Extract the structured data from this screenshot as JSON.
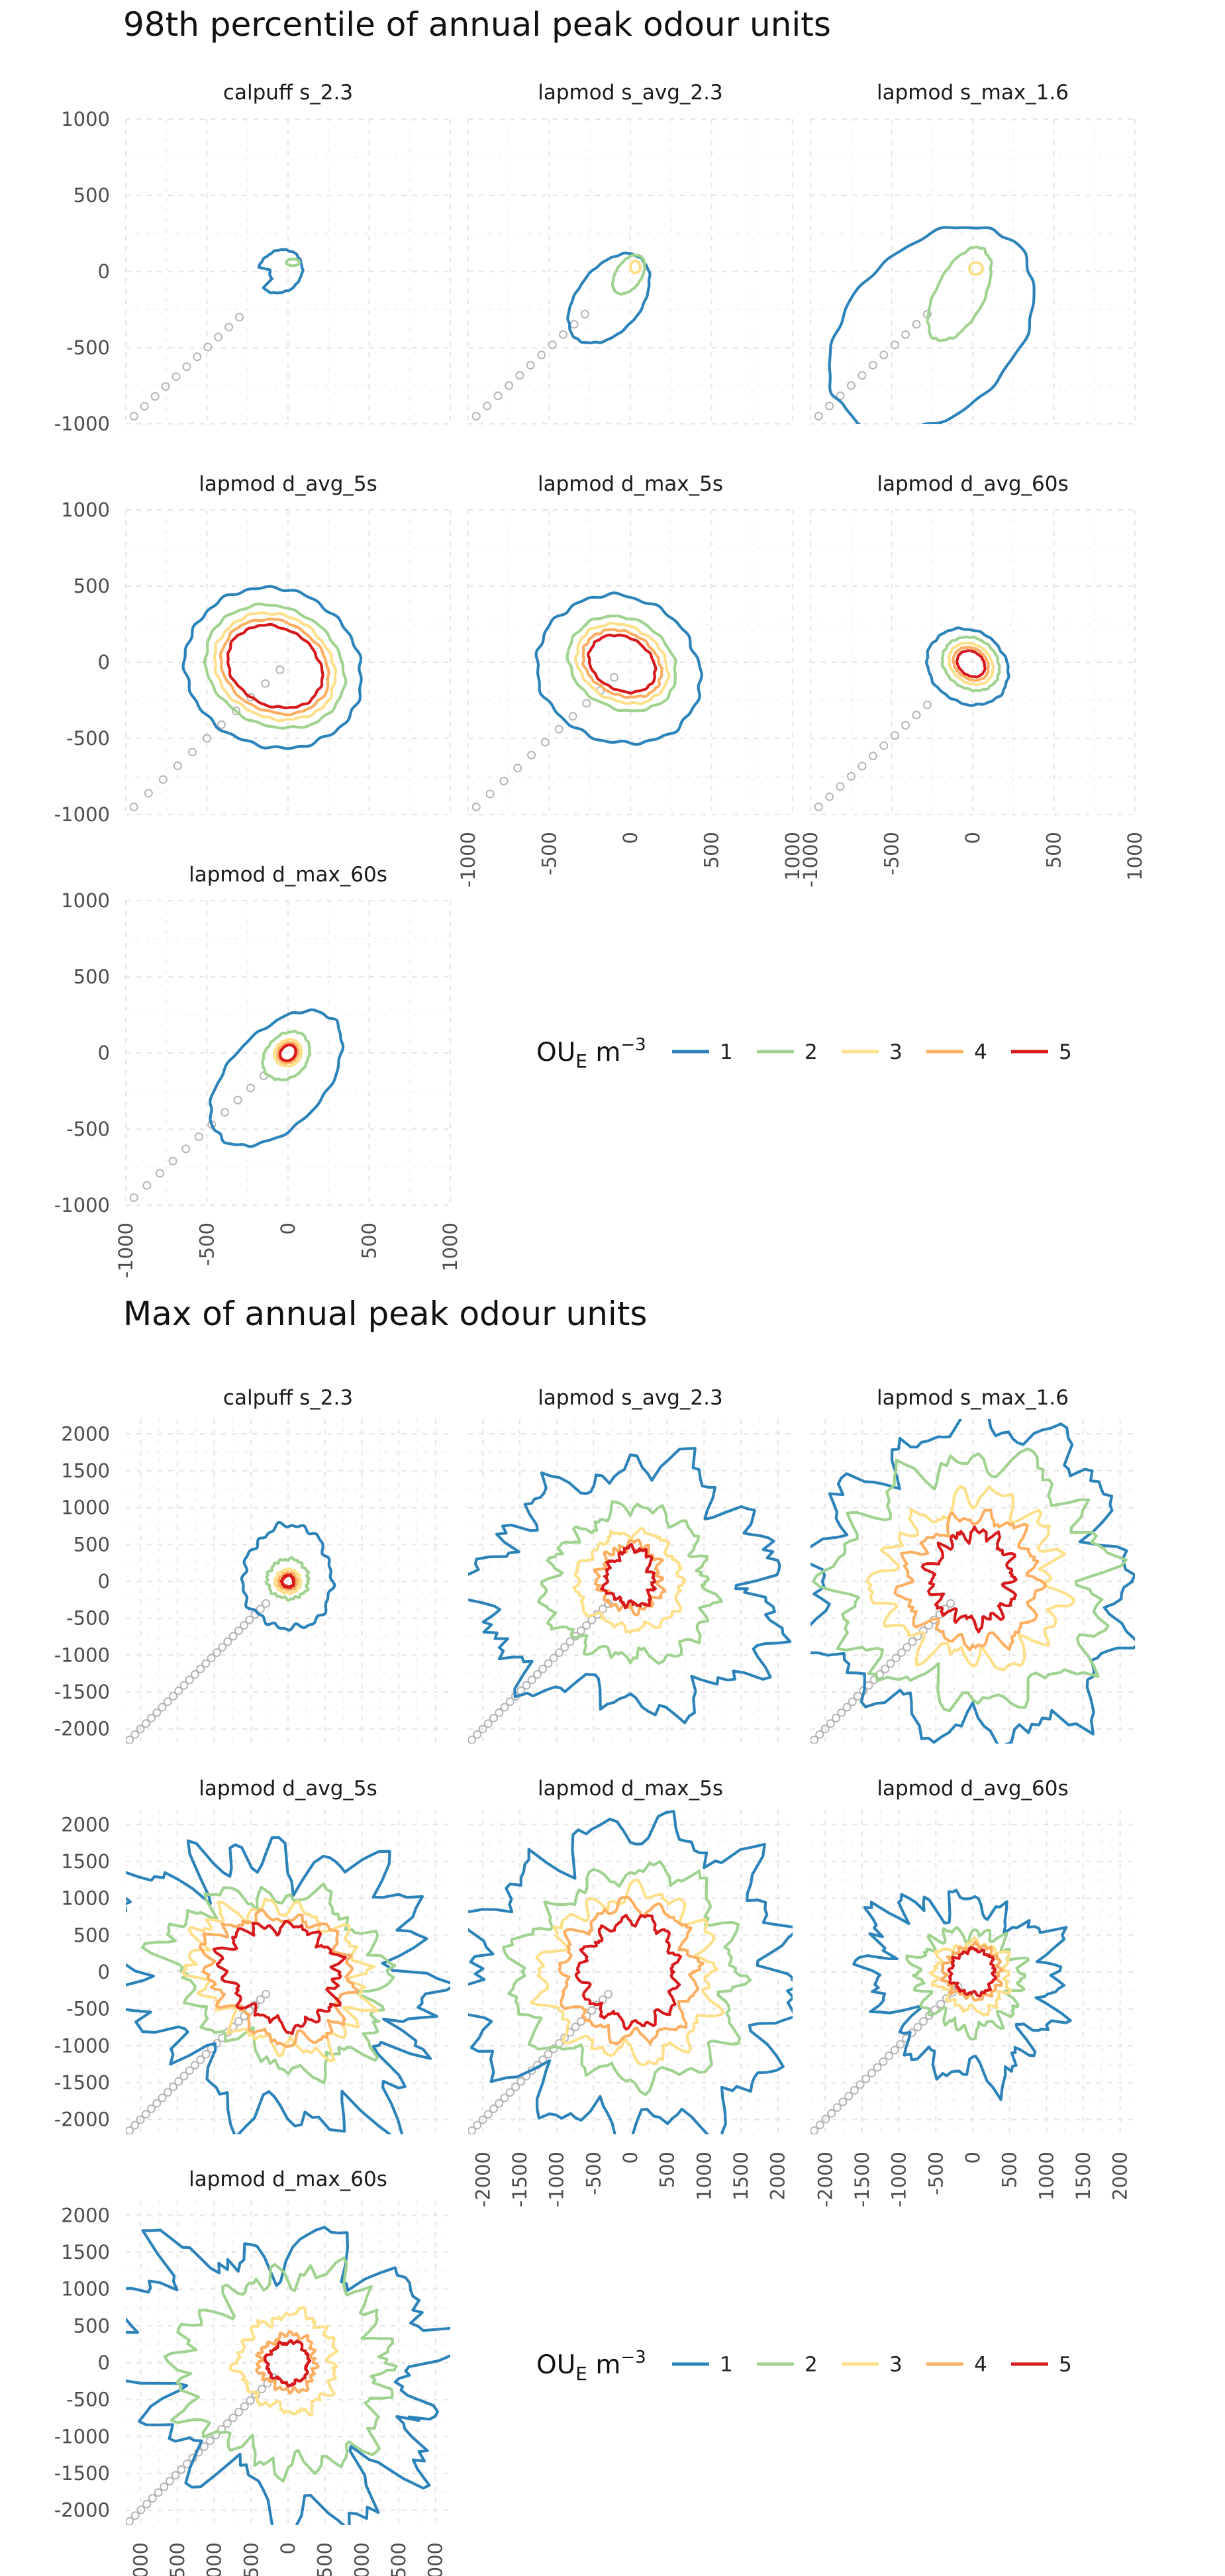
{
  "figures": [
    {
      "title": "98th percentile of annual peak odour units",
      "legend_title": "OU",
      "legend_sub": "E",
      "legend_unit": " m",
      "legend_sup": "−3",
      "legend_items": [
        "1",
        "2",
        "3",
        "4",
        "5"
      ],
      "chart_data": {
        "type": "contour",
        "xlim": [
          -1000,
          1000
        ],
        "ylim": [
          -1000,
          1000
        ],
        "x_ticks": [
          -1000,
          -500,
          0,
          500,
          1000
        ],
        "y_ticks": [
          -1000,
          -500,
          0,
          500,
          1000
        ],
        "panels": [
          {
            "name": "calpuff s_2.3",
            "levels": [
              {
                "level": 1,
                "x0": -50,
                "y0": 0,
                "rx": 130,
                "ry": 150,
                "rot": -40,
                "shape": "comma"
              },
              {
                "level": 2,
                "x0": 30,
                "y0": 60,
                "rx": 40,
                "ry": 22,
                "rot": 0
              }
            ],
            "track": [
              -950,
              -950,
              -300,
              -300
            ]
          },
          {
            "name": "lapmod s_avg_2.3",
            "levels": [
              {
                "level": 1,
                "x0": -130,
                "y0": -180,
                "rx": 200,
                "ry": 330,
                "rot": -35
              },
              {
                "level": 2,
                "x0": -10,
                "y0": -20,
                "rx": 80,
                "ry": 140,
                "rot": -30
              },
              {
                "level": 3,
                "x0": 30,
                "y0": 30,
                "rx": 30,
                "ry": 40,
                "rot": 0
              }
            ],
            "track": [
              -950,
              -950,
              -280,
              -280
            ]
          },
          {
            "name": "lapmod s_max_1.6",
            "levels": [
              {
                "level": 1,
                "x0": -250,
                "y0": -380,
                "rx": 520,
                "ry": 760,
                "rot": -40
              },
              {
                "level": 2,
                "x0": -80,
                "y0": -150,
                "rx": 150,
                "ry": 330,
                "rot": -25
              },
              {
                "level": 3,
                "x0": 20,
                "y0": 20,
                "rx": 40,
                "ry": 40,
                "rot": 0
              }
            ],
            "track": [
              -950,
              -950,
              -280,
              -280
            ]
          },
          {
            "name": "lapmod d_avg_5s",
            "levels": [
              {
                "level": 1,
                "x0": -90,
                "y0": -40,
                "rx": 560,
                "ry": 510,
                "rot": -35
              },
              {
                "level": 2,
                "x0": -80,
                "y0": -30,
                "rx": 450,
                "ry": 380,
                "rot": -35
              },
              {
                "level": 3,
                "x0": -80,
                "y0": -30,
                "rx": 390,
                "ry": 330,
                "rot": -35
              },
              {
                "level": 4,
                "x0": -80,
                "y0": -30,
                "rx": 350,
                "ry": 290,
                "rot": -35
              },
              {
                "level": 5,
                "x0": -80,
                "y0": -30,
                "rx": 310,
                "ry": 250,
                "rot": -35
              }
            ],
            "track": [
              -950,
              -950,
              -50,
              -50
            ]
          },
          {
            "name": "lapmod d_max_5s",
            "levels": [
              {
                "level": 1,
                "x0": -70,
                "y0": -50,
                "rx": 520,
                "ry": 470,
                "rot": -35
              },
              {
                "level": 2,
                "x0": -50,
                "y0": -10,
                "rx": 350,
                "ry": 290,
                "rot": -35
              },
              {
                "level": 3,
                "x0": -50,
                "y0": -10,
                "rx": 300,
                "ry": 240,
                "rot": -35
              },
              {
                "level": 4,
                "x0": -50,
                "y0": -10,
                "rx": 260,
                "ry": 200,
                "rot": -35
              },
              {
                "level": 5,
                "x0": -50,
                "y0": -10,
                "rx": 220,
                "ry": 170,
                "rot": -35
              }
            ],
            "track": [
              -950,
              -950,
              -100,
              -100
            ]
          },
          {
            "name": "lapmod d_avg_60s",
            "levels": [
              {
                "level": 1,
                "x0": -30,
                "y0": -30,
                "rx": 270,
                "ry": 230,
                "rot": -45
              },
              {
                "level": 2,
                "x0": -10,
                "y0": -10,
                "rx": 190,
                "ry": 160,
                "rot": -45
              },
              {
                "level": 3,
                "x0": -10,
                "y0": -10,
                "rx": 150,
                "ry": 120,
                "rot": -45
              },
              {
                "level": 4,
                "x0": -10,
                "y0": -10,
                "rx": 120,
                "ry": 95,
                "rot": -45
              },
              {
                "level": 5,
                "x0": -10,
                "y0": -10,
                "rx": 95,
                "ry": 75,
                "rot": -45
              }
            ],
            "track": [
              -950,
              -950,
              -280,
              -280
            ]
          },
          {
            "name": "lapmod d_max_60s",
            "levels": [
              {
                "level": 1,
                "x0": -70,
                "y0": -170,
                "rx": 300,
                "ry": 520,
                "rot": -40
              },
              {
                "level": 2,
                "x0": -10,
                "y0": -20,
                "rx": 130,
                "ry": 170,
                "rot": -35
              },
              {
                "level": 3,
                "x0": 0,
                "y0": 0,
                "rx": 80,
                "ry": 90,
                "rot": -35
              },
              {
                "level": 4,
                "x0": 0,
                "y0": 0,
                "rx": 60,
                "ry": 70,
                "rot": -35
              },
              {
                "level": 5,
                "x0": 0,
                "y0": 0,
                "rx": 45,
                "ry": 55,
                "rot": -35
              }
            ],
            "track": [
              -950,
              -950,
              -150,
              -150
            ]
          }
        ]
      }
    },
    {
      "title": "Max of annual peak odour units",
      "legend_title": "OU",
      "legend_sub": "E",
      "legend_unit": " m",
      "legend_sup": "−3",
      "legend_items": [
        "1",
        "2",
        "3",
        "4",
        "5"
      ],
      "chart_data": {
        "type": "contour",
        "xlim": [
          -2200,
          2200
        ],
        "ylim": [
          -2200,
          2200
        ],
        "x_ticks": [
          -2000,
          -1500,
          -1000,
          -500,
          0,
          500,
          1000,
          1500,
          2000
        ],
        "y_ticks": [
          -2000,
          -1500,
          -1000,
          -500,
          0,
          500,
          1000,
          1500,
          2000
        ],
        "panels": [
          {
            "name": "calpuff s_2.3",
            "levels": [
              {
                "level": 1,
                "x0": 0,
                "y0": 50,
                "rx": 600,
                "ry": 700,
                "rot": 0,
                "rough": 0.15
              },
              {
                "level": 2,
                "x0": 0,
                "y0": 30,
                "rx": 280,
                "ry": 270,
                "rot": 0,
                "rough": 0.15
              },
              {
                "level": 3,
                "x0": 0,
                "y0": 0,
                "rx": 170,
                "ry": 160,
                "rot": 0,
                "rough": 0.2
              },
              {
                "level": 4,
                "x0": 0,
                "y0": 0,
                "rx": 120,
                "ry": 110,
                "rot": 0,
                "rough": 0.25
              },
              {
                "level": 5,
                "x0": 0,
                "y0": 0,
                "rx": 80,
                "ry": 80,
                "rot": 0,
                "rough": 0.3
              }
            ],
            "track": [
              -2150,
              -2150,
              -300,
              -300
            ]
          },
          {
            "name": "lapmod s_avg_2.3",
            "levels": [
              {
                "level": 1,
                "x0": 0,
                "y0": -100,
                "rx": 2000,
                "ry": 1600,
                "rot": 0,
                "rough": 0.45
              },
              {
                "level": 2,
                "x0": 0,
                "y0": -50,
                "rx": 1100,
                "ry": 1000,
                "rot": 0,
                "rough": 0.3
              },
              {
                "level": 3,
                "x0": 0,
                "y0": 0,
                "rx": 700,
                "ry": 650,
                "rot": 0,
                "rough": 0.3
              },
              {
                "level": 4,
                "x0": 0,
                "y0": 50,
                "rx": 420,
                "ry": 450,
                "rot": 0,
                "rough": 0.4
              },
              {
                "level": 5,
                "x0": 0,
                "y0": 50,
                "rx": 320,
                "ry": 380,
                "rot": 0,
                "rough": 0.45
              }
            ],
            "track": [
              -2150,
              -2150,
              -300,
              -300
            ]
          },
          {
            "name": "lapmod s_max_1.6",
            "levels": [
              {
                "level": 1,
                "x0": 0,
                "y0": 0,
                "rx": 2100,
                "ry": 2100,
                "rot": 0,
                "rough": 0.35
              },
              {
                "level": 2,
                "x0": 0,
                "y0": 0,
                "rx": 1800,
                "ry": 1600,
                "rot": 0,
                "rough": 0.35
              },
              {
                "level": 3,
                "x0": 0,
                "y0": 0,
                "rx": 1200,
                "ry": 1100,
                "rot": 0,
                "rough": 0.35
              },
              {
                "level": 4,
                "x0": 0,
                "y0": 0,
                "rx": 900,
                "ry": 850,
                "rot": 0,
                "rough": 0.35
              },
              {
                "level": 5,
                "x0": 0,
                "y0": 50,
                "rx": 550,
                "ry": 600,
                "rot": 0,
                "rough": 0.4
              }
            ],
            "track": [
              -2150,
              -2150,
              -300,
              -300
            ]
          },
          {
            "name": "lapmod d_avg_5s",
            "levels": [
              {
                "level": 1,
                "x0": -200,
                "y0": -100,
                "rx": 2200,
                "ry": 1700,
                "rot": -25,
                "rough": 0.5
              },
              {
                "level": 2,
                "x0": -100,
                "y0": -50,
                "rx": 1500,
                "ry": 1100,
                "rot": -25,
                "rough": 0.4
              },
              {
                "level": 3,
                "x0": -100,
                "y0": -50,
                "rx": 1200,
                "ry": 900,
                "rot": -25,
                "rough": 0.4
              },
              {
                "level": 4,
                "x0": -100,
                "y0": -50,
                "rx": 1000,
                "ry": 800,
                "rot": -25,
                "rough": 0.35
              },
              {
                "level": 5,
                "x0": -80,
                "y0": -20,
                "rx": 800,
                "ry": 650,
                "rot": -25,
                "rough": 0.35
              }
            ],
            "track": [
              -2150,
              -2150,
              -300,
              -300
            ]
          },
          {
            "name": "lapmod d_max_5s",
            "levels": [
              {
                "level": 1,
                "x0": 0,
                "y0": -100,
                "rx": 2150,
                "ry": 2000,
                "rot": 0,
                "rough": 0.35
              },
              {
                "level": 2,
                "x0": 0,
                "y0": -50,
                "rx": 1500,
                "ry": 1400,
                "rot": 0,
                "rough": 0.3
              },
              {
                "level": 3,
                "x0": 0,
                "y0": -50,
                "rx": 1150,
                "ry": 1100,
                "rot": 0,
                "rough": 0.3
              },
              {
                "level": 4,
                "x0": 0,
                "y0": 0,
                "rx": 900,
                "ry": 900,
                "rot": 0,
                "rough": 0.3
              },
              {
                "level": 5,
                "x0": 0,
                "y0": 0,
                "rx": 650,
                "ry": 700,
                "rot": 0,
                "rough": 0.3
              }
            ],
            "track": [
              -2150,
              -2150,
              -300,
              -300
            ]
          },
          {
            "name": "lapmod d_avg_60s",
            "levels": [
              {
                "level": 1,
                "x0": -100,
                "y0": -150,
                "rx": 1300,
                "ry": 1100,
                "rot": -35,
                "rough": 0.55
              },
              {
                "level": 2,
                "x0": -50,
                "y0": -100,
                "rx": 700,
                "ry": 650,
                "rot": -25,
                "rough": 0.4
              },
              {
                "level": 3,
                "x0": 0,
                "y0": -50,
                "rx": 500,
                "ry": 450,
                "rot": -20,
                "rough": 0.35
              },
              {
                "level": 4,
                "x0": 0,
                "y0": 0,
                "rx": 380,
                "ry": 350,
                "rot": 0,
                "rough": 0.3
              },
              {
                "level": 5,
                "x0": 0,
                "y0": 0,
                "rx": 300,
                "ry": 300,
                "rot": 0,
                "rough": 0.3
              }
            ],
            "track": [
              -2150,
              -2150,
              -200,
              -200
            ]
          },
          {
            "name": "lapmod d_max_60s",
            "levels": [
              {
                "level": 1,
                "x0": -100,
                "y0": -100,
                "rx": 2200,
                "ry": 1700,
                "rot": -20,
                "rough": 0.5
              },
              {
                "level": 2,
                "x0": 0,
                "y0": -100,
                "rx": 1400,
                "ry": 1300,
                "rot": 0,
                "rough": 0.45
              },
              {
                "level": 3,
                "x0": 0,
                "y0": 0,
                "rx": 650,
                "ry": 650,
                "rot": 0,
                "rough": 0.4
              },
              {
                "level": 4,
                "x0": 0,
                "y0": 0,
                "rx": 380,
                "ry": 380,
                "rot": 0,
                "rough": 0.35
              },
              {
                "level": 5,
                "x0": 0,
                "y0": 0,
                "rx": 280,
                "ry": 280,
                "rot": 0,
                "rough": 0.35
              }
            ],
            "track": [
              -2150,
              -2150,
              -200,
              -200
            ]
          }
        ]
      }
    }
  ],
  "level_colors": {
    "1": "#2b83ba",
    "2": "#9fd38f",
    "3": "#fee08b",
    "4": "#fdae61",
    "5": "#d7191c"
  },
  "track_color": "#b5b5b5",
  "grid": true
}
